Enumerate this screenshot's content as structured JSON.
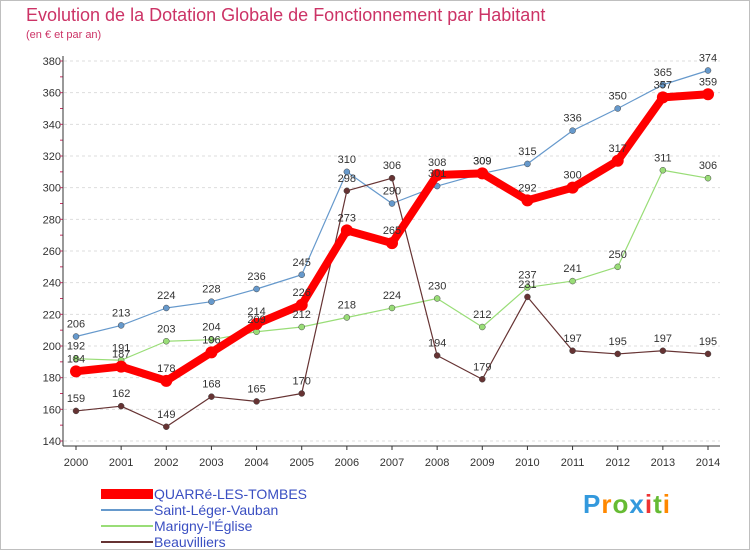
{
  "header": {
    "title": "Evolution de la Dotation Globale de Fonctionnement par Habitant",
    "subtitle": "(en € et par an)"
  },
  "chart_data": {
    "type": "line",
    "title": "Evolution de la Dotation Globale de Fonctionnement par Habitant",
    "subtitle": "(en € et par an)",
    "xlabel": "",
    "ylabel": "",
    "categories": [
      "2000",
      "2001",
      "2002",
      "2003",
      "2004",
      "2005",
      "2006",
      "2007",
      "2008",
      "2009",
      "2010",
      "2011",
      "2012",
      "2013",
      "2014"
    ],
    "yticks": [
      140,
      160,
      180,
      200,
      220,
      240,
      260,
      280,
      300,
      320,
      340,
      360,
      380
    ],
    "ylim": [
      140,
      380
    ],
    "grid": "horizontal dashed",
    "legend_position": "bottom-left",
    "series": [
      {
        "name": "QUARRé-LES-TOMBES",
        "color": "#ff0000",
        "values": [
          184,
          187,
          178,
          196,
          214,
          226,
          273,
          265,
          308,
          309,
          292,
          300,
          317,
          357,
          359
        ]
      },
      {
        "name": "Saint-Léger-Vauban",
        "color": "#6699cc",
        "values": [
          206,
          213,
          224,
          228,
          236,
          245,
          310,
          290,
          301,
          309,
          315,
          336,
          350,
          365,
          374
        ]
      },
      {
        "name": "Marigny-l'Église",
        "color": "#99dd77",
        "values": [
          192,
          191,
          203,
          204,
          209,
          212,
          218,
          224,
          230,
          212,
          237,
          241,
          250,
          311,
          306
        ]
      },
      {
        "name": "Beauvilliers",
        "color": "#663333",
        "values": [
          159,
          162,
          149,
          168,
          165,
          170,
          298,
          306,
          194,
          179,
          231,
          197,
          195,
          197,
          195
        ]
      }
    ]
  },
  "logo": {
    "letters": [
      "P",
      "r",
      "o",
      "x",
      "i",
      "t",
      "i"
    ],
    "colors": [
      "#3399dd",
      "#ff8800",
      "#66bb33",
      "#3399dd",
      "#ee3333",
      "#66bb33",
      "#ff8800"
    ]
  }
}
